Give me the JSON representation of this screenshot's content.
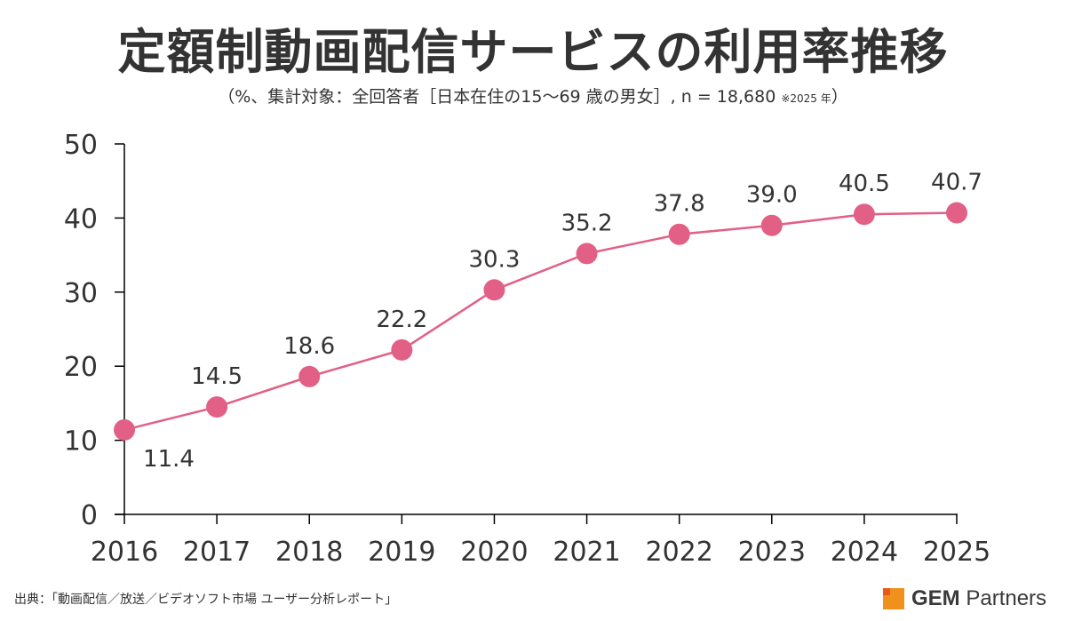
{
  "header": {
    "title": "定額制動画配信サービスの利用率推移",
    "subtitle_main": "（%、集計対象：全回答者［日本在住の15～69 歳の男女］, n = 18,680 ",
    "subtitle_note": "※2025 年",
    "subtitle_close": "）"
  },
  "footer": {
    "source": "出典：「動画配信／放送／ビデオソフト市場 ユーザー分析レポート」",
    "logo_bold": "GEM",
    "logo_rest": " Partners",
    "logo_icon": "gem-partners-logo-icon"
  },
  "colors": {
    "series": "#e25f86",
    "text": "#333333",
    "axis": "#000000",
    "logo_orange": "#f0911e",
    "logo_red": "#e85a1c"
  },
  "chart_data": {
    "type": "line",
    "title": "定額制動画配信サービスの利用率推移",
    "subtitle": "（%、集計対象：全回答者［日本在住の15～69 歳の男女］, n = 18,680 ※2025 年）",
    "xlabel": "",
    "ylabel": "%",
    "categories": [
      "2016",
      "2017",
      "2018",
      "2019",
      "2020",
      "2021",
      "2022",
      "2023",
      "2024",
      "2025"
    ],
    "series": [
      {
        "name": "利用率",
        "values": [
          11.4,
          14.5,
          18.6,
          22.2,
          30.3,
          35.2,
          37.8,
          39.0,
          40.5,
          40.7
        ]
      }
    ],
    "data_labels": [
      "11.4",
      "14.5",
      "18.6",
      "22.2",
      "30.3",
      "35.2",
      "37.8",
      "39.0",
      "40.5",
      "40.7"
    ],
    "ylim": [
      0,
      50
    ],
    "yticks": [
      0,
      10,
      20,
      30,
      40,
      50
    ],
    "grid": false,
    "legend": "none"
  }
}
